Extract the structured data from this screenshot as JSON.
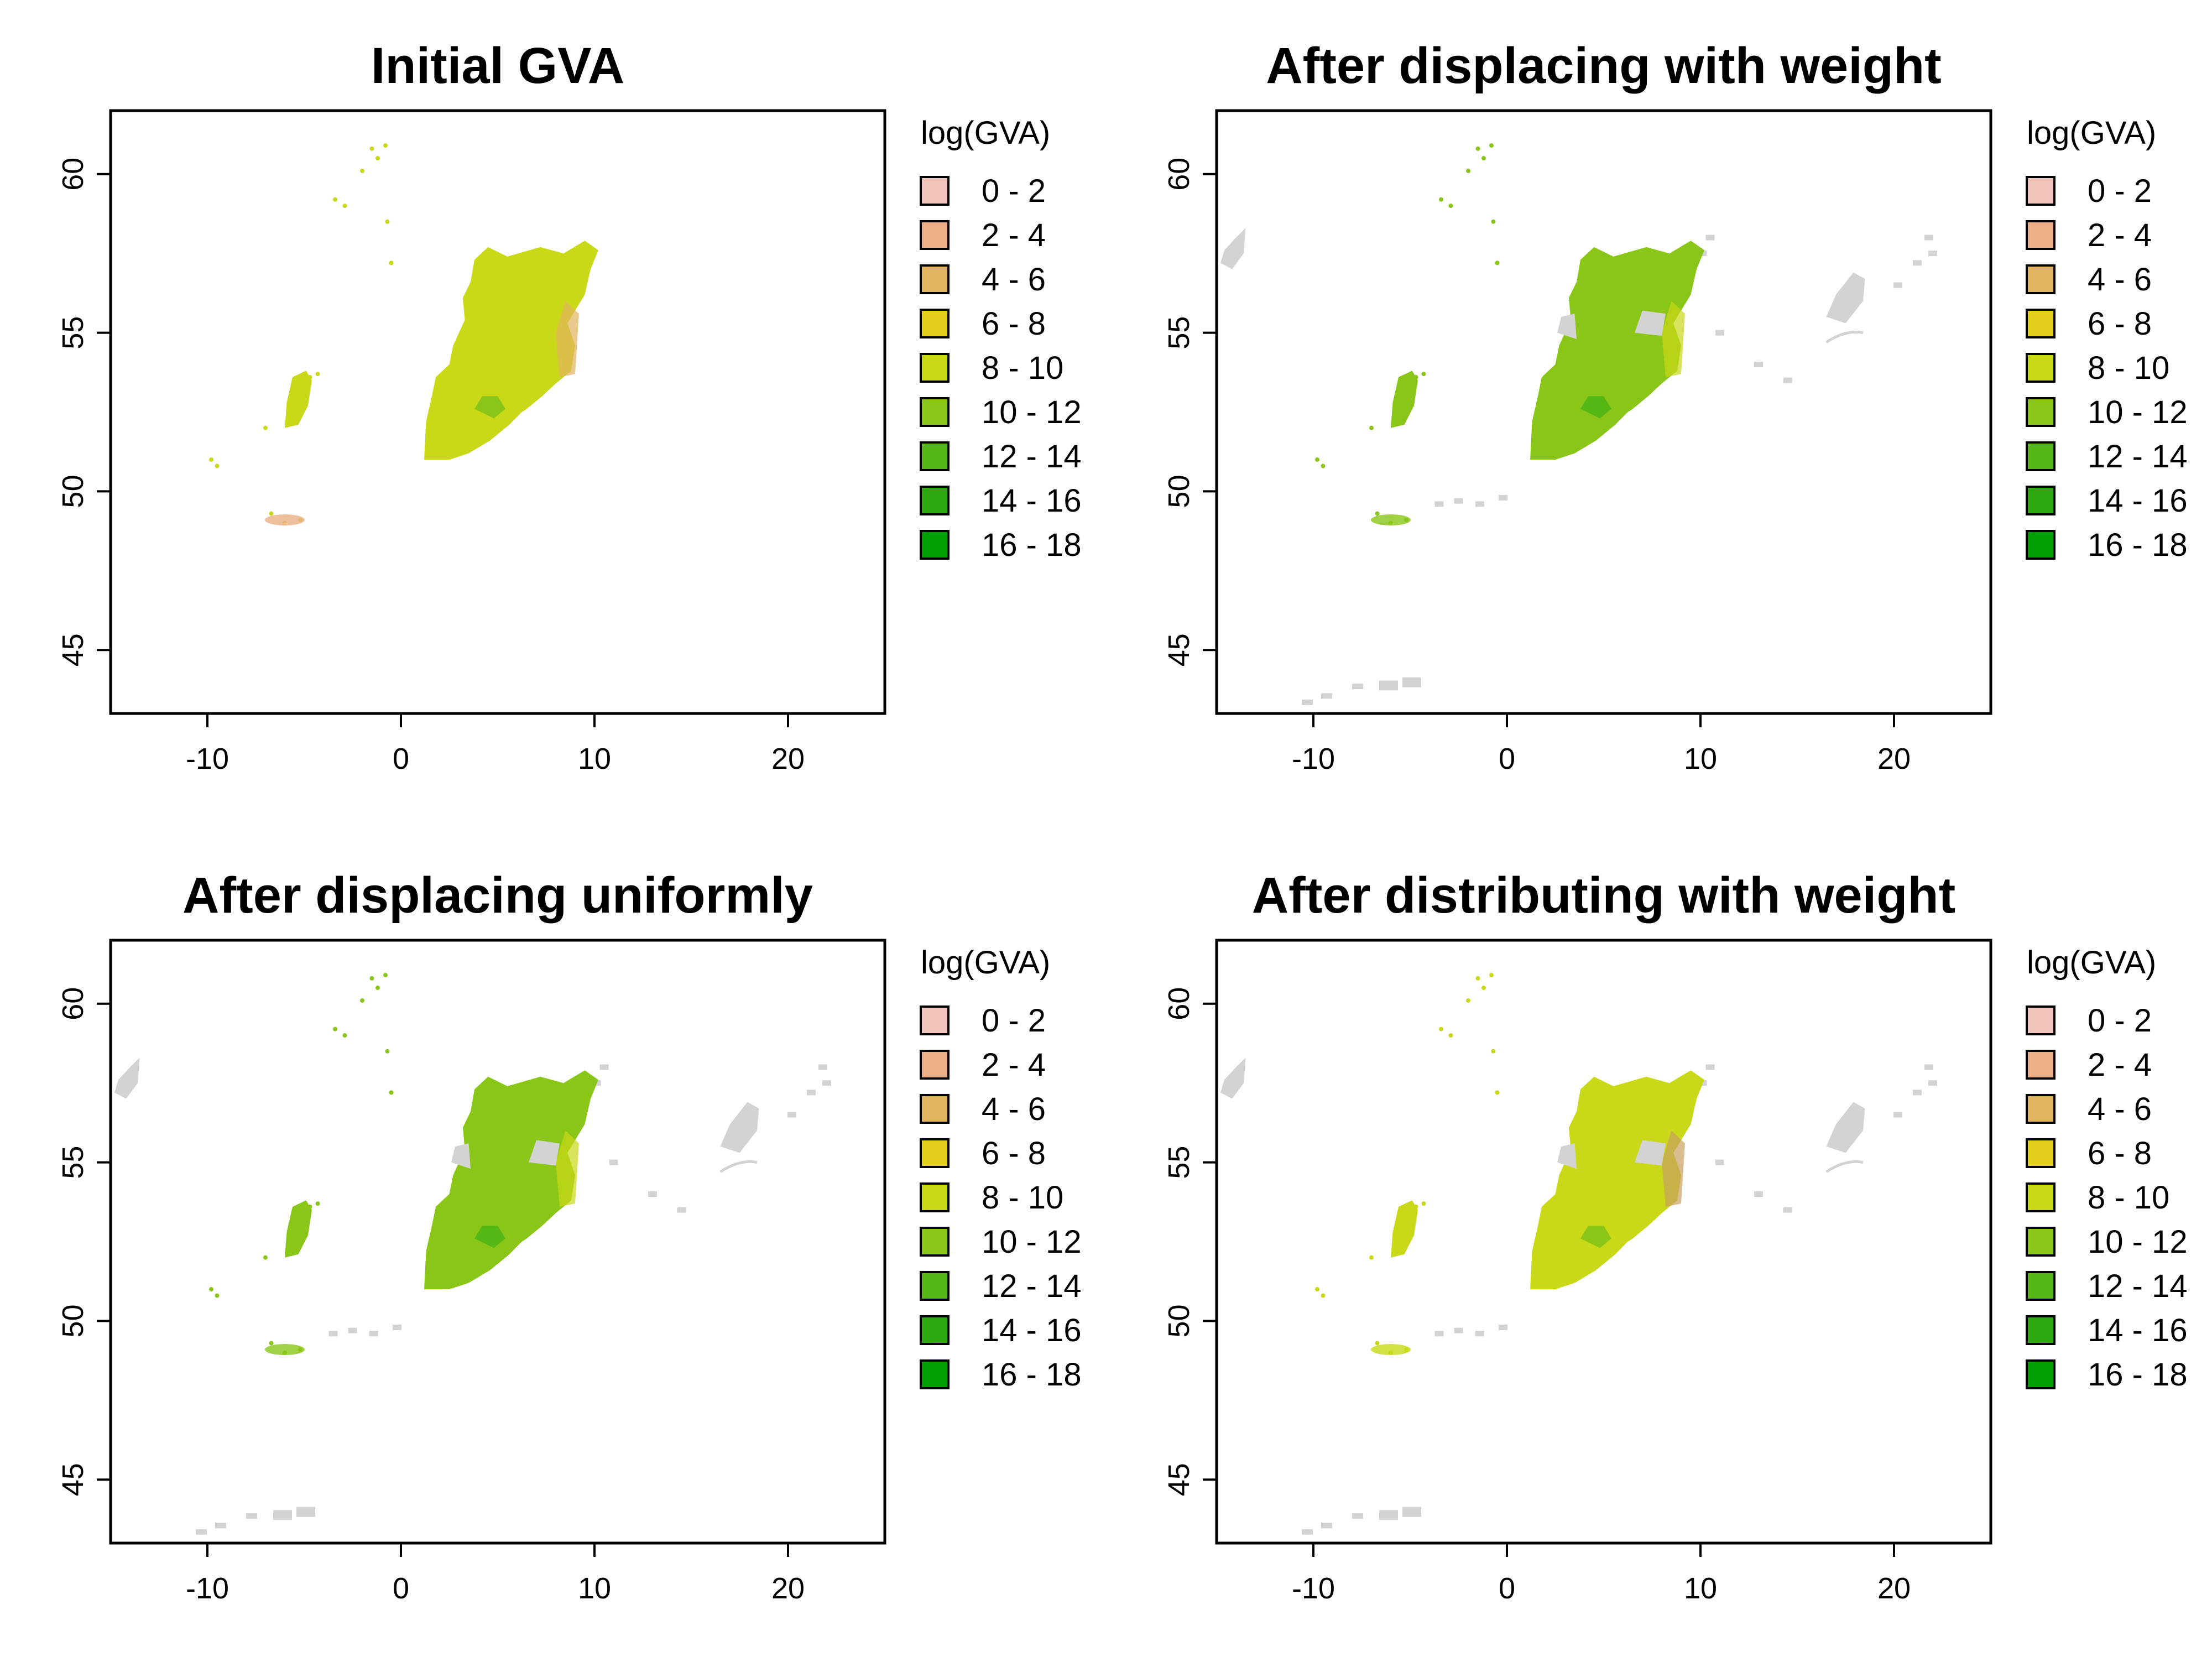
{
  "figure": {
    "panels": [
      {
        "title": "Initial GVA",
        "legend_title": "log(GVA)",
        "x_ticks": [
          "-10",
          "0",
          "10",
          "20"
        ],
        "y_ticks": [
          "45",
          "50",
          "55",
          "60"
        ],
        "dominant_class": "8 - 10",
        "shows_grey_no_data_areas": false
      },
      {
        "title": "After displacing with weight",
        "legend_title": "log(GVA)",
        "x_ticks": [
          "-10",
          "0",
          "10",
          "20"
        ],
        "y_ticks": [
          "45",
          "50",
          "55",
          "60"
        ],
        "dominant_class": "10 - 12",
        "shows_grey_no_data_areas": true
      },
      {
        "title": "After displacing uniformly",
        "legend_title": "log(GVA)",
        "x_ticks": [
          "-10",
          "0",
          "10",
          "20"
        ],
        "y_ticks": [
          "45",
          "50",
          "55",
          "60"
        ],
        "dominant_class": "10 - 12",
        "shows_grey_no_data_areas": true
      },
      {
        "title": "After distributing with weight",
        "legend_title": "log(GVA)",
        "x_ticks": [
          "-10",
          "0",
          "10",
          "20"
        ],
        "y_ticks": [
          "45",
          "50",
          "55",
          "60"
        ],
        "dominant_class": "8 - 10",
        "shows_grey_no_data_areas": true
      }
    ],
    "axes": {
      "x_range": [
        -15,
        25
      ],
      "y_range": [
        43,
        62
      ]
    },
    "legend": {
      "classes": [
        "0 - 2",
        "2 - 4",
        "4 - 6",
        "6 - 8",
        "8 - 10",
        "10 - 12",
        "12 - 14",
        "14 - 16",
        "16 - 18"
      ],
      "colors": [
        "#F2C5BC",
        "#EBAE85",
        "#E3B45E",
        "#E4CF1E",
        "#C9D917",
        "#8AC617",
        "#56B815",
        "#2BA90F",
        "#009E00"
      ]
    },
    "colors": {
      "no_data": "#D3D3D3"
    }
  }
}
